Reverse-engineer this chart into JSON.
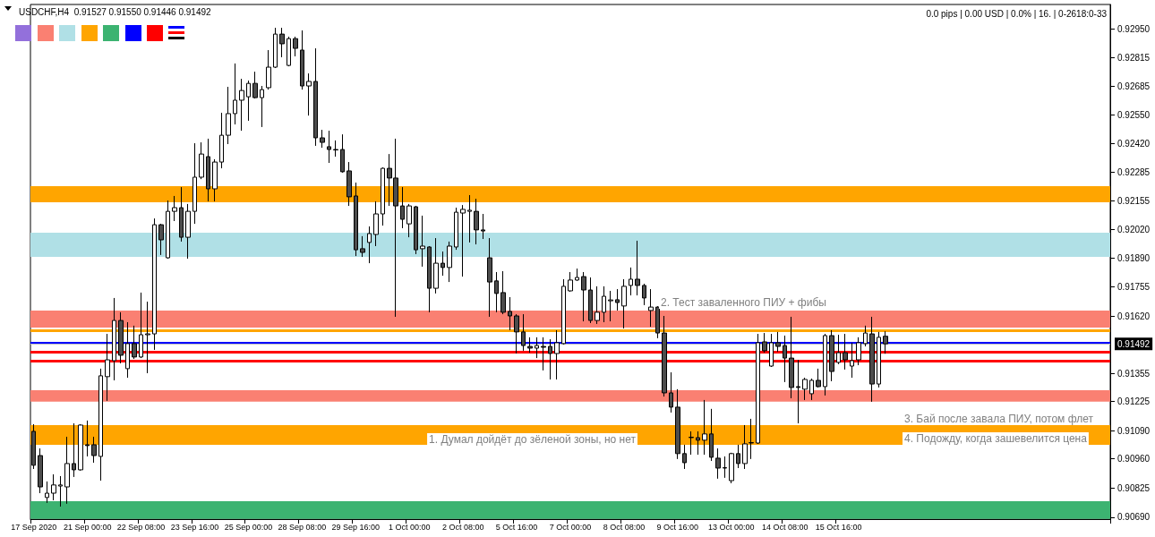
{
  "chart_data": {
    "type": "candlestick",
    "title": "USDCHF,H4  0.91527 0.91550 0.91446 0.91492",
    "categories": [
      "17 Sep 2020",
      null,
      null,
      null,
      null,
      null,
      null,
      null,
      "21 Sep 00:00",
      null,
      null,
      null,
      null,
      null,
      null,
      null,
      "22 Sep 08:00",
      null,
      null,
      null,
      null,
      null,
      null,
      null,
      "23 Sep 16:00",
      null,
      null,
      null,
      null,
      null,
      null,
      null,
      "25 Sep 00:00",
      null,
      null,
      null,
      null,
      null,
      null,
      null,
      "28 Sep 08:00",
      null,
      null,
      null,
      null,
      null,
      null,
      null,
      "29 Sep 16:00",
      null,
      null,
      null,
      null,
      null,
      null,
      null,
      "1 Oct 00:00",
      null,
      null,
      null,
      null,
      null,
      null,
      null,
      "2 Oct 08:00",
      null,
      null,
      null,
      null,
      null,
      null,
      null,
      "5 Oct 16:00",
      null,
      null,
      null,
      null,
      null,
      null,
      null,
      "7 Oct 00:00",
      null,
      null,
      null,
      null,
      null,
      null,
      null,
      "8 Oct 08:00",
      null,
      null,
      null,
      null,
      null,
      null,
      null,
      "9 Oct 16:00",
      null,
      null,
      null,
      null,
      null,
      null,
      null,
      "13 Oct 00:00",
      null,
      null,
      null,
      null,
      null,
      null,
      null,
      "14 Oct 08:00",
      null,
      null,
      null,
      null,
      null,
      null,
      null,
      "15 Oct 16:00",
      null,
      null,
      null,
      null,
      null,
      null,
      null,
      null,
      null,
      null,
      null,
      null,
      null,
      null,
      null,
      null,
      null,
      null,
      null,
      null,
      null,
      null,
      null,
      null,
      null,
      null,
      null,
      null,
      null,
      null,
      null,
      null,
      null,
      null,
      null,
      null,
      null,
      null,
      null,
      null
    ],
    "ohlc": [
      [
        0.91087,
        0.9112,
        0.90913,
        0.9093
      ],
      [
        0.90975,
        0.91008,
        0.90801,
        0.9083
      ],
      [
        0.90781,
        0.90855,
        0.90756,
        0.90801
      ],
      [
        0.90801,
        0.90888,
        0.90768,
        0.90839
      ],
      [
        0.90834,
        0.9088,
        0.90739,
        0.90839
      ],
      [
        0.9083,
        0.91062,
        0.90752,
        0.90938
      ],
      [
        0.90938,
        0.91124,
        0.90876,
        0.90909
      ],
      [
        0.90909,
        0.9112,
        0.90905,
        0.91116
      ],
      [
        0.91025,
        0.91137,
        0.90971,
        0.91021
      ],
      [
        0.91025,
        0.91062,
        0.90942,
        0.90975
      ],
      [
        0.90971,
        0.91377,
        0.90859,
        0.91344
      ],
      [
        0.9134,
        0.91538,
        0.91228,
        0.91418
      ],
      [
        0.91414,
        0.91704,
        0.91323,
        0.916
      ],
      [
        0.916,
        0.91638,
        0.91402,
        0.91439
      ],
      [
        0.91377,
        0.91592,
        0.91335,
        0.91493
      ],
      [
        0.91493,
        0.91576,
        0.91422,
        0.91431
      ],
      [
        0.91431,
        0.91729,
        0.91426,
        0.91534
      ],
      [
        0.91534,
        0.91687,
        0.91356,
        0.91538
      ],
      [
        0.91538,
        0.92072,
        0.91464,
        0.92043
      ],
      [
        0.92043,
        0.92047,
        0.91903,
        0.91973
      ],
      [
        0.9189,
        0.92155,
        0.91886,
        0.92105
      ],
      [
        0.92105,
        0.92176,
        0.9206,
        0.92122
      ],
      [
        0.92122,
        0.92217,
        0.91965,
        0.91985
      ],
      [
        0.91985,
        0.92139,
        0.91886,
        0.92105
      ],
      [
        0.92105,
        0.9242,
        0.92047,
        0.92263
      ],
      [
        0.92263,
        0.92424,
        0.92254,
        0.9237
      ],
      [
        0.92358,
        0.92441,
        0.92151,
        0.92209
      ],
      [
        0.92209,
        0.92346,
        0.92151,
        0.92333
      ],
      [
        0.92333,
        0.92561,
        0.92304,
        0.92457
      ],
      [
        0.92457,
        0.92681,
        0.92416,
        0.92557
      ],
      [
        0.92557,
        0.92789,
        0.92507,
        0.92619
      ],
      [
        0.92619,
        0.92718,
        0.92478,
        0.92664
      ],
      [
        0.92635,
        0.9271,
        0.92524,
        0.92697
      ],
      [
        0.92697,
        0.92751,
        0.92627,
        0.92631
      ],
      [
        0.92631,
        0.92685,
        0.92495,
        0.92668
      ],
      [
        0.92677,
        0.92851,
        0.92668,
        0.92772
      ],
      [
        0.92772,
        0.92954,
        0.92768,
        0.92925
      ],
      [
        0.92925,
        0.92954,
        0.92818,
        0.9288
      ],
      [
        0.9278,
        0.92913,
        0.92776,
        0.92904
      ],
      [
        0.92904,
        0.92913,
        0.92822,
        0.92859
      ],
      [
        0.92851,
        0.92942,
        0.92668,
        0.92685
      ],
      [
        0.92685,
        0.92743,
        0.92548,
        0.92706
      ],
      [
        0.92706,
        0.92859,
        0.92408,
        0.92445
      ],
      [
        0.92445,
        0.92482,
        0.92399,
        0.92424
      ],
      [
        0.92404,
        0.92478,
        0.92329,
        0.92391
      ],
      [
        0.92391,
        0.92433,
        0.92358,
        0.92389
      ],
      [
        0.92391,
        0.92461,
        0.92284,
        0.92288
      ],
      [
        0.92292,
        0.92333,
        0.9213,
        0.92172
      ],
      [
        0.92176,
        0.92238,
        0.91898,
        0.91927
      ],
      [
        0.91932,
        0.9199,
        0.91894,
        0.91915
      ],
      [
        0.91961,
        0.92035,
        0.91865,
        0.92002
      ],
      [
        0.91998,
        0.92151,
        0.91944,
        0.92093
      ],
      [
        0.92093,
        0.92308,
        0.92039,
        0.92304
      ],
      [
        0.92304,
        0.9237,
        0.9213,
        0.92259
      ],
      [
        0.92259,
        0.92441,
        0.91617,
        0.9213
      ],
      [
        0.9213,
        0.92217,
        0.92027,
        0.92068
      ],
      [
        0.92047,
        0.92139,
        0.91985,
        0.9213
      ],
      [
        0.92126,
        0.9213,
        0.91907,
        0.91927
      ],
      [
        0.91932,
        0.92085,
        0.91849,
        0.91944
      ],
      [
        0.9194,
        0.91944,
        0.91638,
        0.91749
      ],
      [
        0.91749,
        0.91981,
        0.91725,
        0.91865
      ],
      [
        0.91865,
        0.91919,
        0.91807,
        0.91845
      ],
      [
        0.91845,
        0.91965,
        0.91778,
        0.91944
      ],
      [
        0.9194,
        0.92122,
        0.91927,
        0.92101
      ],
      [
        0.92097,
        0.92134,
        0.91803,
        0.92114
      ],
      [
        0.92105,
        0.9218,
        0.91961,
        0.9211
      ],
      [
        0.92105,
        0.92163,
        0.91952,
        0.92019
      ],
      [
        0.92019,
        0.92093,
        0.91977,
        0.92014
      ],
      [
        0.9189,
        0.91981,
        0.91617,
        0.91778
      ],
      [
        0.91783,
        0.91824,
        0.91638,
        0.91725
      ],
      [
        0.91729,
        0.91828,
        0.91629,
        0.91638
      ],
      [
        0.91642,
        0.91708,
        0.91555,
        0.91621
      ],
      [
        0.91621,
        0.91629,
        0.91447,
        0.91547
      ],
      [
        0.91547,
        0.91629,
        0.9146,
        0.91484
      ],
      [
        0.9148,
        0.91522,
        0.91451,
        0.91472
      ],
      [
        0.91472,
        0.91522,
        0.91426,
        0.91484
      ],
      [
        0.9148,
        0.91522,
        0.91369,
        0.91476
      ],
      [
        0.9148,
        0.91513,
        0.91327,
        0.91447
      ],
      [
        0.91447,
        0.91555,
        0.91327,
        0.91497
      ],
      [
        0.91493,
        0.91791,
        0.91489,
        0.91758
      ],
      [
        0.91737,
        0.91824,
        0.91733,
        0.91787
      ],
      [
        0.91787,
        0.9184,
        0.91783,
        0.91799
      ],
      [
        0.91803,
        0.91824,
        0.91596,
        0.91741
      ],
      [
        0.91741,
        0.91799,
        0.91588,
        0.916
      ],
      [
        0.916,
        0.91758,
        0.91584,
        0.91638
      ],
      [
        0.91638,
        0.91758,
        0.91592,
        0.91712
      ],
      [
        0.91691,
        0.91737,
        0.91596,
        0.91695
      ],
      [
        0.91696,
        0.91745,
        0.91646,
        0.91683
      ],
      [
        0.91667,
        0.91791,
        0.91563,
        0.91758
      ],
      [
        0.91762,
        0.91845,
        0.91716,
        0.91791
      ],
      [
        0.91791,
        0.91969,
        0.91716,
        0.91762
      ],
      [
        0.91762,
        0.9177,
        0.91671,
        0.91704
      ],
      [
        0.91646,
        0.91745,
        0.91571,
        0.91662
      ],
      [
        0.91662,
        0.91666,
        0.91518,
        0.91542
      ],
      [
        0.91542,
        0.91621,
        0.91248,
        0.91265
      ],
      [
        0.91265,
        0.9136,
        0.91174,
        0.91199
      ],
      [
        0.91199,
        0.91282,
        0.90959,
        0.90984
      ],
      [
        0.90984,
        0.91025,
        0.90913,
        0.90942
      ],
      [
        0.91058,
        0.91087,
        0.90979,
        0.9106
      ],
      [
        0.91058,
        0.91087,
        0.90979,
        0.91046
      ],
      [
        0.91046,
        0.91232,
        0.90979,
        0.91075
      ],
      [
        0.91075,
        0.91191,
        0.9095,
        0.90967
      ],
      [
        0.90963,
        0.91008,
        0.90868,
        0.90917
      ],
      [
        0.90917,
        0.90971,
        0.90872,
        0.90919
      ],
      [
        0.90859,
        0.90988,
        0.90847,
        0.90984
      ],
      [
        0.90984,
        0.91025,
        0.90917,
        0.90938
      ],
      [
        0.90938,
        0.91116,
        0.90913,
        0.91029
      ],
      [
        0.91033,
        0.91145,
        0.90959,
        0.91035
      ],
      [
        0.91033,
        0.91538,
        0.91029,
        0.91497
      ],
      [
        0.91501,
        0.91542,
        0.91451,
        0.9146
      ],
      [
        0.91389,
        0.91538,
        0.91385,
        0.91497
      ],
      [
        0.91497,
        0.91547,
        0.91455,
        0.9148
      ],
      [
        0.91484,
        0.9153,
        0.91315,
        0.91426
      ],
      [
        0.91426,
        0.91617,
        0.9124,
        0.9129
      ],
      [
        0.91294,
        0.91418,
        0.91124,
        0.9129
      ],
      [
        0.91282,
        0.91335,
        0.91232,
        0.91327
      ],
      [
        0.91261,
        0.91331,
        0.91232,
        0.91323
      ],
      [
        0.91323,
        0.91377,
        0.9129,
        0.91294
      ],
      [
        0.91294,
        0.91538,
        0.91253,
        0.9153
      ],
      [
        0.9153,
        0.91555,
        0.91319,
        0.91364
      ],
      [
        0.91406,
        0.91534,
        0.91398,
        0.91451
      ],
      [
        0.91451,
        0.91538,
        0.91373,
        0.91418
      ],
      [
        0.91389,
        0.91497,
        0.91335,
        0.91414
      ],
      [
        0.91418,
        0.91522,
        0.91393,
        0.91497
      ],
      [
        0.91493,
        0.91576,
        0.9148,
        0.91542
      ],
      [
        0.91538,
        0.91617,
        0.91224,
        0.91306
      ],
      [
        0.91306,
        0.91547,
        0.9129,
        0.91522
      ],
      [
        0.91527,
        0.9155,
        0.91446,
        0.91492
      ],
      null,
      null,
      null,
      null,
      null,
      null,
      null,
      null,
      null,
      null,
      null,
      null,
      null,
      null,
      null,
      null,
      null,
      null,
      null,
      null,
      null,
      null,
      null,
      null,
      null,
      null,
      null,
      null,
      null,
      null,
      null,
      null,
      null
    ],
    "ylim": [
      0.90681,
      0.93062
    ],
    "yticks": [
      {
        "value": 0.9295,
        "label": "0.92950"
      },
      0.92815,
      0.92685,
      {
        "value": 0.9255,
        "label": "0.92550"
      },
      {
        "value": 0.9242,
        "label": "0.92420"
      },
      0.92285,
      0.92155,
      {
        "value": 0.9202,
        "label": "0.92020"
      },
      {
        "value": 0.9189,
        "label": "0.91890"
      },
      0.91755,
      {
        "value": 0.9162,
        "label": "0.91620"
      },
      0.91355,
      0.91225,
      {
        "value": 0.9109,
        "label": "0.91090"
      },
      {
        "value": 0.9096,
        "label": "0.90960"
      },
      0.90825,
      {
        "value": 0.9069,
        "label": "0.90690"
      }
    ],
    "bands": [
      {
        "axis": "y",
        "from": 0.92147,
        "to": 0.92221,
        "color": "#ffa500"
      },
      {
        "axis": "y",
        "from": 0.91894,
        "to": 0.92006,
        "color": "#b0e0e6"
      },
      {
        "axis": "y",
        "from": 0.91567,
        "to": 0.91646,
        "color": "#fa8072"
      },
      {
        "axis": "y",
        "from": 0.91224,
        "to": 0.91277,
        "color": "#fa8072"
      },
      {
        "axis": "y",
        "from": 0.91025,
        "to": 0.91116,
        "color": "#ffa500"
      },
      {
        "axis": "y",
        "from": 0.90682,
        "to": 0.90764,
        "color": "#3cb371"
      }
    ],
    "ref_lines": [
      {
        "axis": "y",
        "value": 0.91497,
        "color": "#0000ff"
      },
      {
        "axis": "y",
        "value": 0.91555,
        "color": "#ffa500"
      },
      {
        "axis": "y",
        "value": 0.91455,
        "color": "#ff0000"
      },
      {
        "axis": "y",
        "value": 0.91414,
        "color": "#ff0000"
      },
      {
        "axis": "y",
        "value": 0.91492,
        "label": "0.91492",
        "color": "#c0c0c0"
      }
    ],
    "annotations": [
      "0.0 pips | 0.00 USD | 0.0% | 16. | 0-2618:0-33",
      "1. Думал дойдёт до зёленой зоны, но нет",
      "2. Тест заваленного ПИУ + фибы",
      "3. Бай после завала ПИУ, потом флет",
      "4. Подожду, когда зашевелится цена"
    ],
    "grid": false
  }
}
